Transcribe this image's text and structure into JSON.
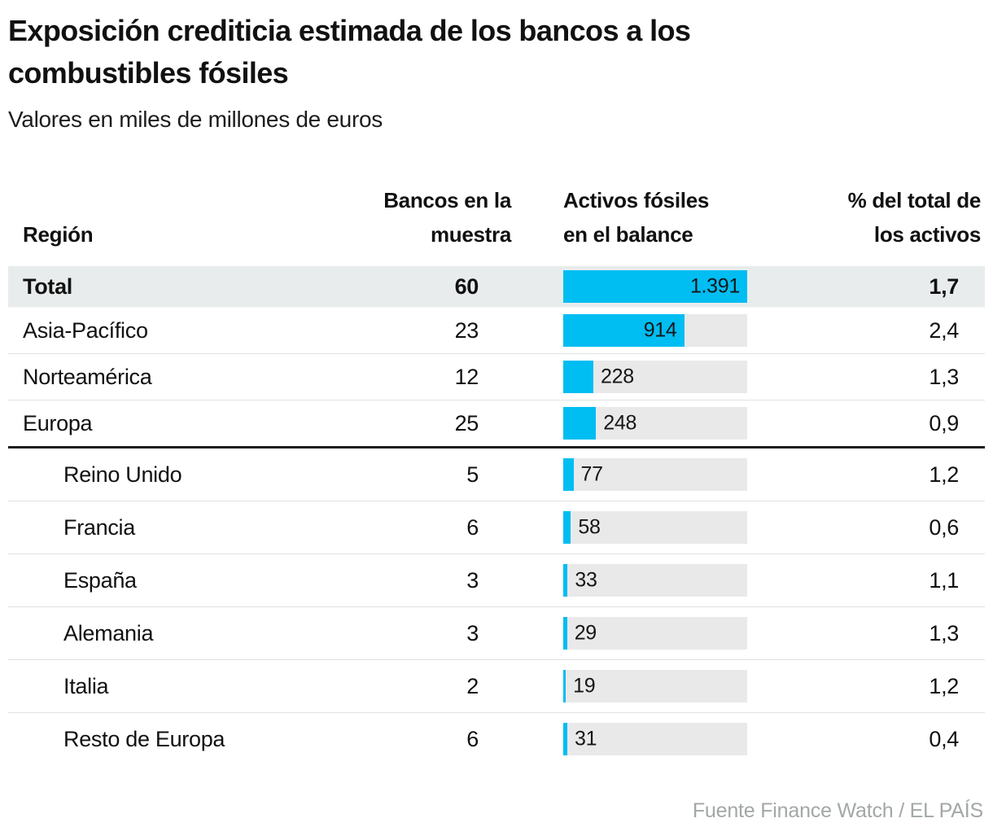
{
  "header": {
    "title": "Exposición crediticia estimada de los bancos a los combustibles fósiles",
    "subtitle": "Valores en miles de millones de euros"
  },
  "table": {
    "columns": {
      "region": "Región",
      "banks_line1": "Bancos en la",
      "banks_line2": "muestra",
      "assets_line1": "Activos fósiles",
      "assets_line2": "en el balance",
      "pct_line1": "% del total de",
      "pct_line2": "los activos"
    },
    "rows": [
      {
        "region": "Total",
        "banks": "60",
        "assets_value": 1391,
        "assets_label": "1.391",
        "pct": "1,7",
        "style": "total"
      },
      {
        "region": "Asia-Pacífico",
        "banks": "23",
        "assets_value": 914,
        "assets_label": "914",
        "pct": "2,4",
        "style": "main"
      },
      {
        "region": "Norteamérica",
        "banks": "12",
        "assets_value": 228,
        "assets_label": "228",
        "pct": "1,3",
        "style": "main"
      },
      {
        "region": "Europa",
        "banks": "25",
        "assets_value": 248,
        "assets_label": "248",
        "pct": "0,9",
        "style": "main",
        "group_end": true
      },
      {
        "region": "Reino Unido",
        "banks": "5",
        "assets_value": 77,
        "assets_label": "77",
        "pct": "1,2",
        "style": "sub"
      },
      {
        "region": "Francia",
        "banks": "6",
        "assets_value": 58,
        "assets_label": "58",
        "pct": "0,6",
        "style": "sub"
      },
      {
        "region": "España",
        "banks": "3",
        "assets_value": 33,
        "assets_label": "33",
        "pct": "1,1",
        "style": "sub"
      },
      {
        "region": "Alemania",
        "banks": "3",
        "assets_value": 29,
        "assets_label": "29",
        "pct": "1,3",
        "style": "sub"
      },
      {
        "region": "Italia",
        "banks": "2",
        "assets_value": 19,
        "assets_label": "19",
        "pct": "1,2",
        "style": "sub"
      },
      {
        "region": "Resto de Europa",
        "banks": "6",
        "assets_value": 31,
        "assets_label": "31",
        "pct": "0,4",
        "style": "sub",
        "last": true
      }
    ]
  },
  "footer": {
    "source": "Fuente Finance Watch / EL PAÍS"
  },
  "colors": {
    "bar_fill": "#00bdf2",
    "bar_track": "#e9e9e9",
    "total_row_bg": "#e9eced",
    "divider_dark": "#1e1e1e",
    "row_divider": "#dfe2e2",
    "footer_text": "#a2a7a7"
  },
  "chart_data": {
    "type": "bar",
    "orientation": "horizontal",
    "title": "Exposición crediticia estimada de los bancos a los combustibles fósiles",
    "subtitle": "Valores en miles de millones de euros",
    "unit": "miles de millones de euros",
    "categories": [
      "Total",
      "Asia-Pacífico",
      "Norteamérica",
      "Europa",
      "Reino Unido",
      "Francia",
      "España",
      "Alemania",
      "Italia",
      "Resto de Europa"
    ],
    "series": [
      {
        "name": "Bancos en la muestra",
        "values": [
          60,
          23,
          12,
          25,
          5,
          6,
          3,
          3,
          2,
          6
        ]
      },
      {
        "name": "Activos fósiles en el balance",
        "values": [
          1391,
          914,
          228,
          248,
          77,
          58,
          33,
          29,
          19,
          31
        ]
      },
      {
        "name": "% del total de los activos",
        "values": [
          1.7,
          2.4,
          1.3,
          0.9,
          1.2,
          0.6,
          1.1,
          1.3,
          1.2,
          0.4
        ]
      }
    ],
    "bar_series": "Activos fósiles en el balance",
    "xlim": [
      0,
      1391
    ],
    "grid": false,
    "legend": false,
    "source": "Fuente Finance Watch / EL PAÍS"
  }
}
